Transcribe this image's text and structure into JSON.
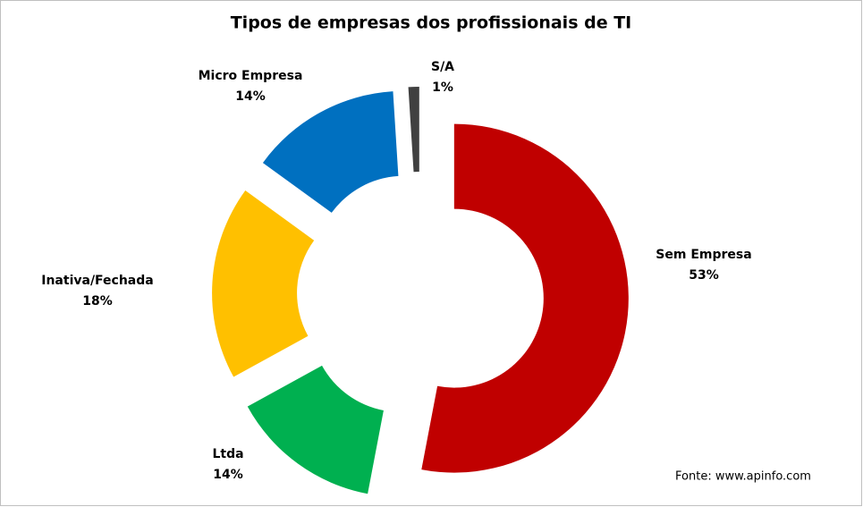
{
  "chart_data": {
    "type": "donut",
    "title": "Tipos de empresas dos profissionais de TI",
    "categories": [
      "Sem Empresa",
      "Ltda",
      "Inativa/Fechada",
      "Micro Empresa",
      "S/A"
    ],
    "values": [
      53,
      14,
      18,
      14,
      1
    ],
    "value_labels": [
      "53%",
      "14%",
      "18%",
      "14%",
      "1%"
    ],
    "colors": [
      "#c00000",
      "#00b050",
      "#ffc000",
      "#0070c0",
      "#404040"
    ],
    "source": "Fonte: www.apinfo.com"
  }
}
